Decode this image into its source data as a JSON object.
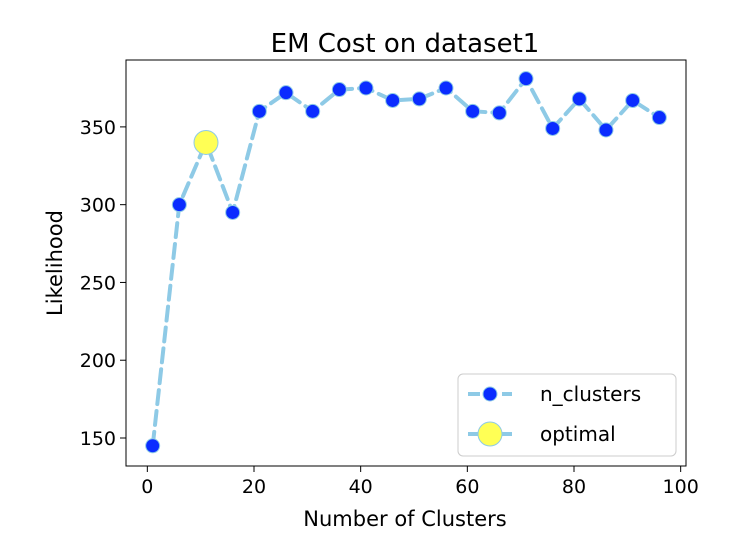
{
  "chart_data": {
    "type": "line",
    "title": "EM Cost on dataset1",
    "xlabel": "Number of Clusters",
    "ylabel": "Likelihood",
    "xlim": [
      -4,
      101
    ],
    "ylim": [
      132,
      393
    ],
    "xticks": [
      0,
      20,
      40,
      60,
      80,
      100
    ],
    "yticks": [
      150,
      200,
      250,
      300,
      350
    ],
    "grid": false,
    "legend_position": "lower-right",
    "series": [
      {
        "name": "n_clusters",
        "style": "dashed line with circle markers",
        "line_color": "#8ecae6",
        "marker_color": "#0a2cff",
        "x": [
          1,
          6,
          11,
          16,
          21,
          26,
          31,
          36,
          41,
          46,
          51,
          56,
          61,
          66,
          71,
          76,
          81,
          86,
          91,
          96
        ],
        "y": [
          145,
          300,
          340,
          295,
          360,
          372,
          360,
          374,
          375,
          367,
          368,
          375,
          360,
          359,
          381,
          349,
          368,
          348,
          367,
          356
        ]
      },
      {
        "name": "optimal",
        "style": "large circle marker",
        "marker_color": "#ffff55",
        "edge_color": "#8ecae6",
        "x": [
          11
        ],
        "y": [
          340
        ]
      }
    ]
  }
}
